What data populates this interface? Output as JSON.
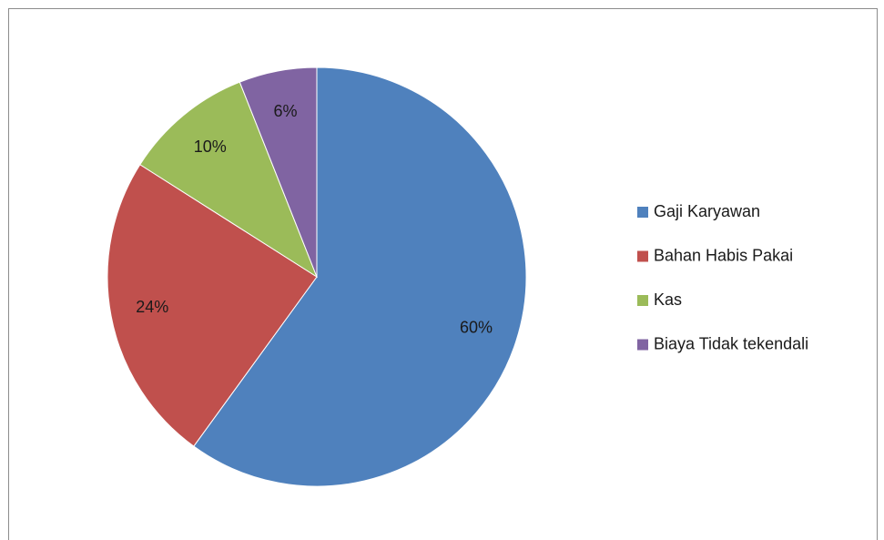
{
  "chart_data": {
    "type": "pie",
    "categories": [
      "Gaji Karyawan",
      "Bahan Habis Pakai",
      "Kas",
      "Biaya Tidak tekendali"
    ],
    "values": [
      60,
      24,
      10,
      6
    ],
    "value_labels": [
      "60%",
      "24%",
      "10%",
      "6%"
    ],
    "colors": [
      "#4f81bd",
      "#c0504d",
      "#9bbb59",
      "#8064a2"
    ],
    "legend": "right"
  }
}
